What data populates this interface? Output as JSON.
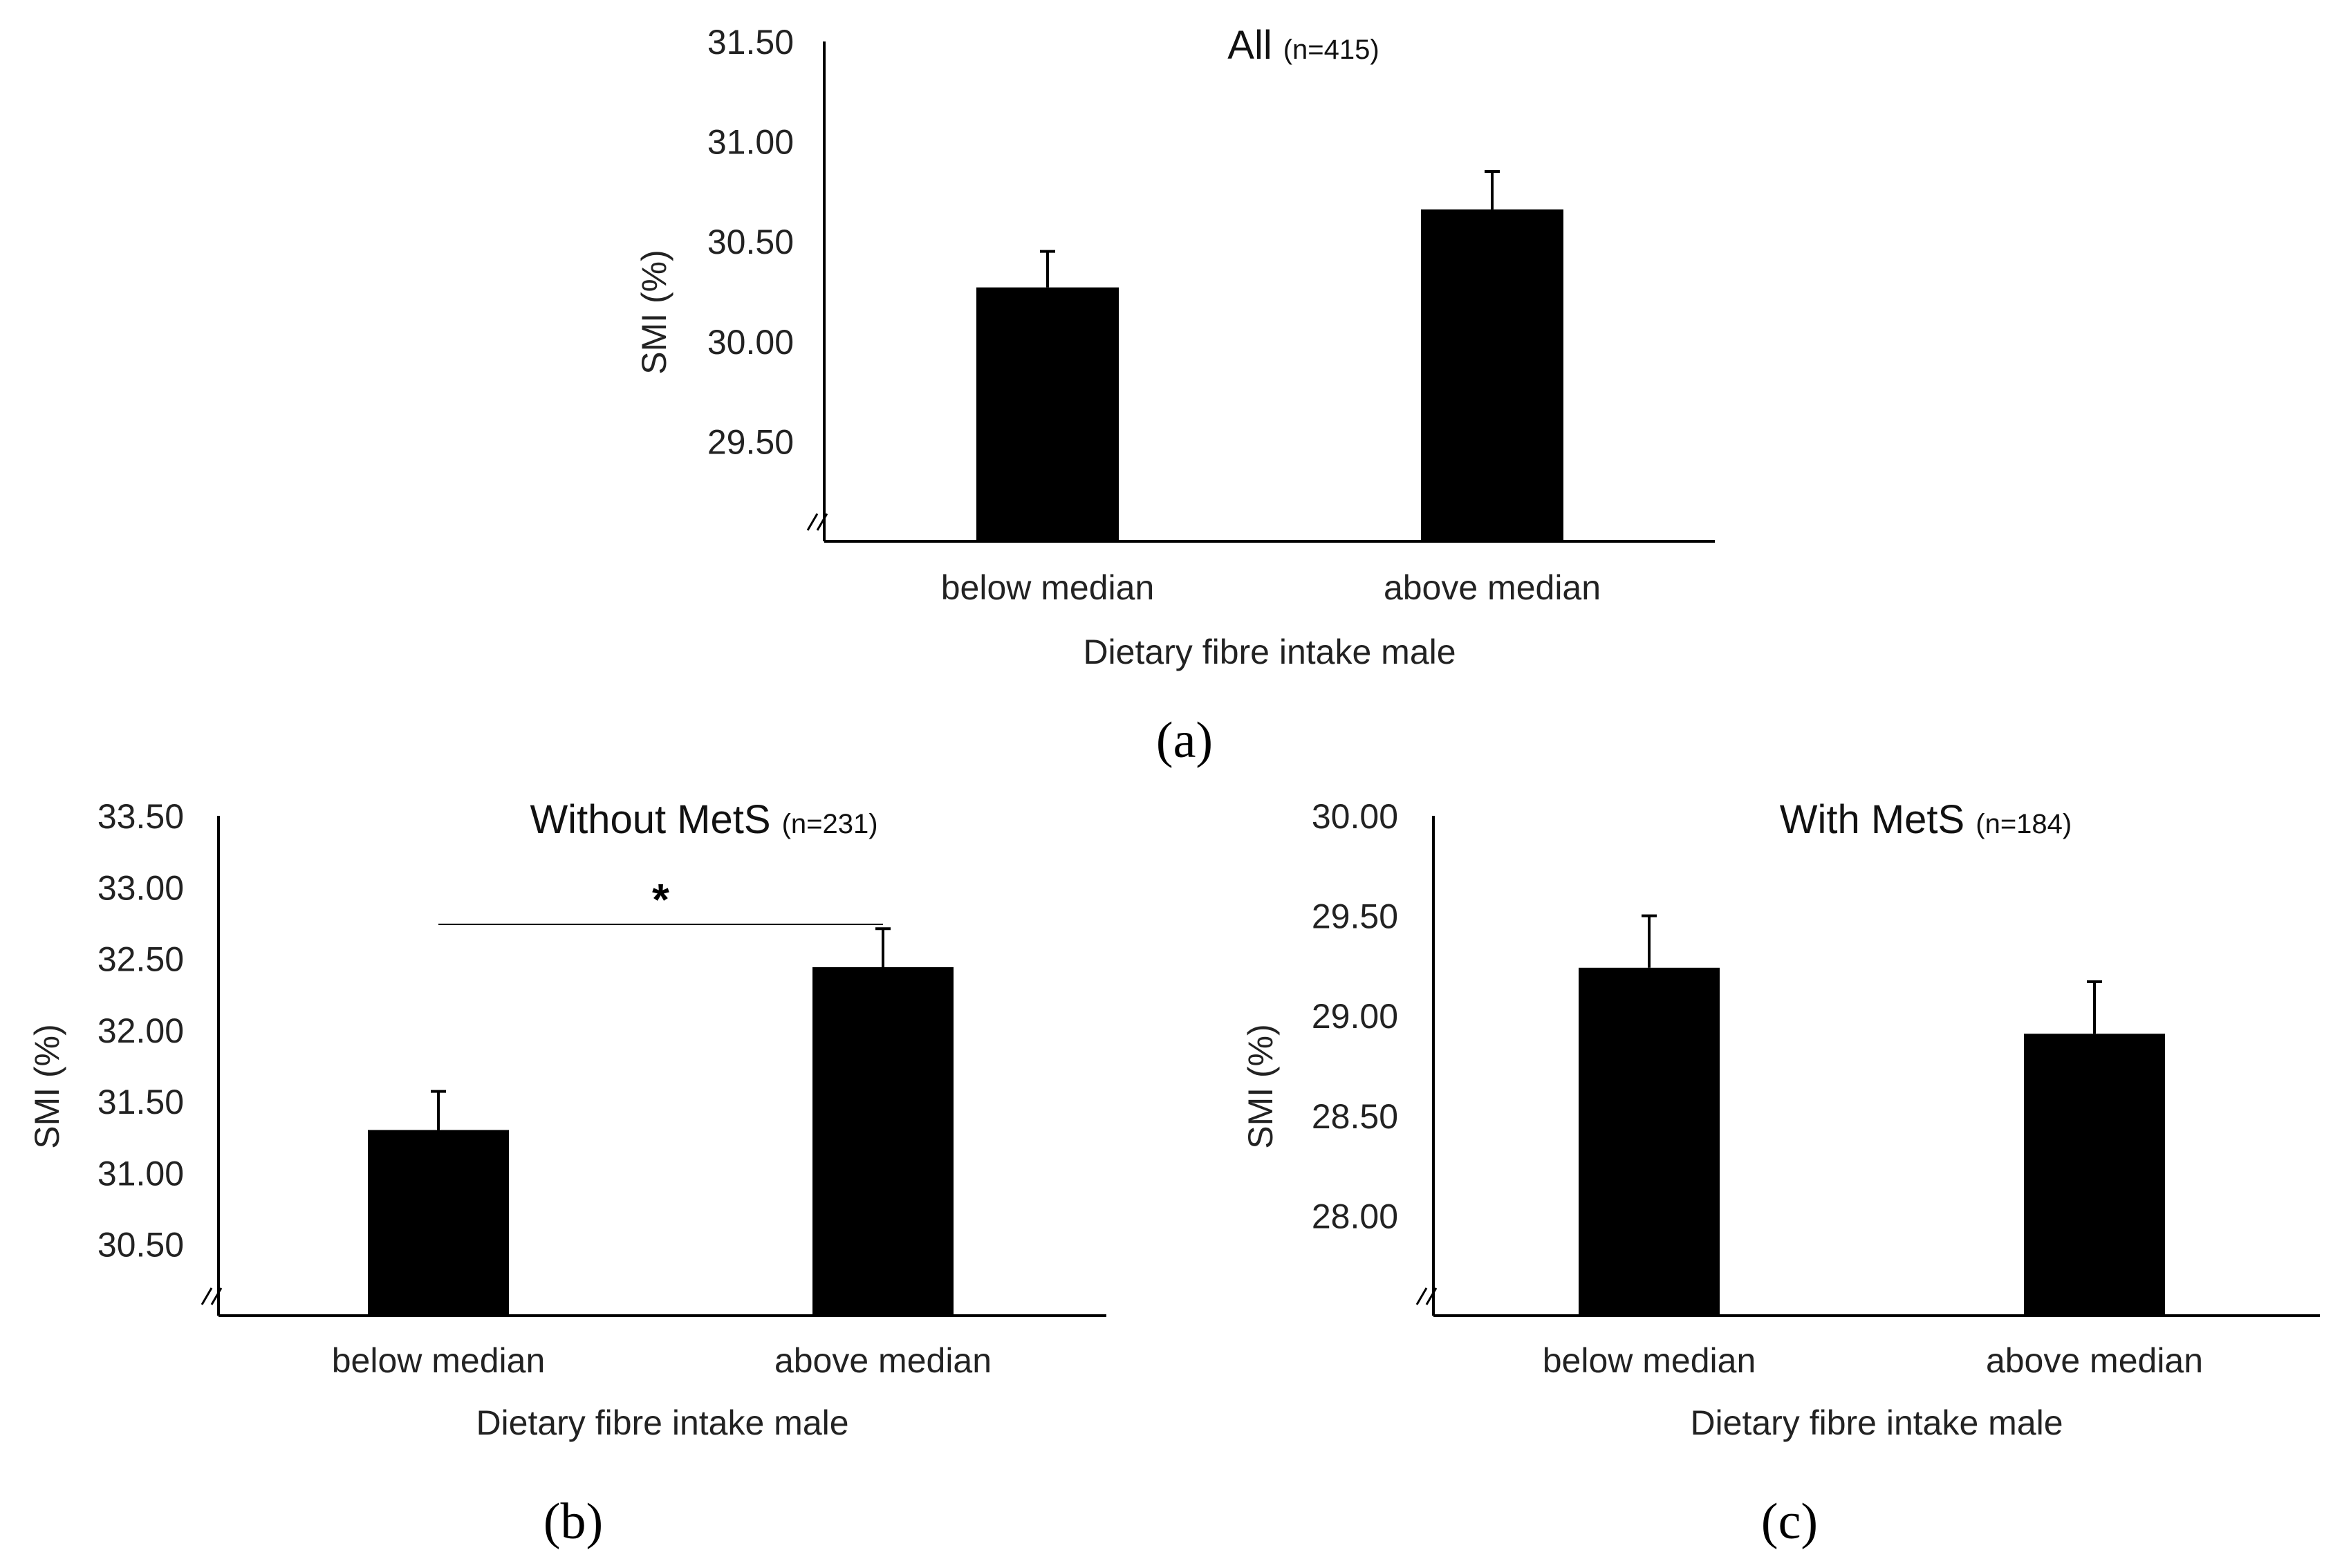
{
  "figure": {
    "panels": [
      "(a)",
      "(b)",
      "(c)"
    ]
  },
  "chart_data": [
    {
      "type": "bar",
      "panel_letter": "a",
      "title": "All",
      "title_n": "(n=415)",
      "categories": [
        "below median",
        "above median"
      ],
      "values": [
        30.27,
        30.66
      ],
      "errors": [
        0.18,
        0.19
      ],
      "xlabel": "Dietary fibre intake male",
      "ylabel": "SMI (%)",
      "ylim": [
        29.0,
        31.5
      ],
      "yticks": [
        "29.50",
        "30.00",
        "30.50",
        "31.00",
        "31.50"
      ],
      "axis_break": "//",
      "bar_color": "#000000",
      "significance": null
    },
    {
      "type": "bar",
      "panel_letter": "b",
      "title": "Without MetS",
      "title_n": "(n=231)",
      "categories": [
        "below median",
        "above median"
      ],
      "values": [
        31.3,
        32.44
      ],
      "errors": [
        0.27,
        0.27
      ],
      "xlabel": "Dietary fibre intake male",
      "ylabel": "SMI (%)",
      "ylim": [
        30.0,
        33.5
      ],
      "yticks": [
        "30.50",
        "31.00",
        "31.50",
        "32.00",
        "32.50",
        "33.00",
        "33.50"
      ],
      "axis_break": "//",
      "bar_color": "#000000",
      "significance": {
        "marker": "*",
        "level": 32.74
      }
    },
    {
      "type": "bar",
      "panel_letter": "c",
      "title": "With MetS",
      "title_n": "(n=184)",
      "categories": [
        "below median",
        "above median"
      ],
      "values": [
        29.24,
        28.91
      ],
      "errors": [
        0.26,
        0.26
      ],
      "xlabel": "Dietary fibre intake male",
      "ylabel": "SMI (%)",
      "ylim": [
        27.5,
        30.0
      ],
      "yticks": [
        "28.00",
        "28.50",
        "29.00",
        "29.50",
        "30.00"
      ],
      "axis_break": "//",
      "bar_color": "#000000",
      "significance": null
    }
  ]
}
